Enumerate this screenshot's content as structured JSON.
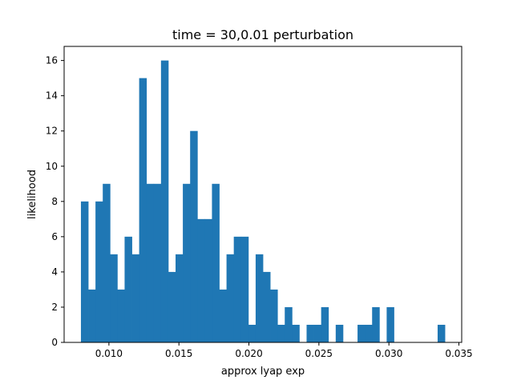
{
  "chart_data": {
    "type": "bar",
    "title": "time = 30,0.01 perturbation",
    "xlabel": "approx lyap exp",
    "ylabel": "likelihood",
    "xlim": [
      0.0068,
      0.0352
    ],
    "ylim": [
      0,
      16.8
    ],
    "xticks": [
      0.01,
      0.015,
      0.02,
      0.025,
      0.03,
      0.035
    ],
    "xtick_labels": [
      "0.010",
      "0.015",
      "0.020",
      "0.025",
      "0.030",
      "0.035"
    ],
    "yticks": [
      0,
      2,
      4,
      6,
      8,
      10,
      12,
      14,
      16
    ],
    "ytick_labels": [
      "0",
      "2",
      "4",
      "6",
      "8",
      "10",
      "12",
      "14",
      "16"
    ],
    "bin_start": 0.008,
    "bin_width": 0.00052,
    "values": [
      8,
      3,
      8,
      9,
      5,
      3,
      6,
      5,
      15,
      9,
      9,
      16,
      4,
      5,
      9,
      12,
      7,
      7,
      9,
      3,
      5,
      6,
      6,
      1,
      5,
      4,
      3,
      1,
      2,
      1,
      0,
      1,
      1,
      2,
      0,
      1,
      0,
      0,
      1,
      1,
      2,
      0,
      2,
      0,
      0,
      0,
      0,
      0,
      0,
      1
    ],
    "bar_color": "#1f77b4",
    "grid": false,
    "legend": "none"
  }
}
